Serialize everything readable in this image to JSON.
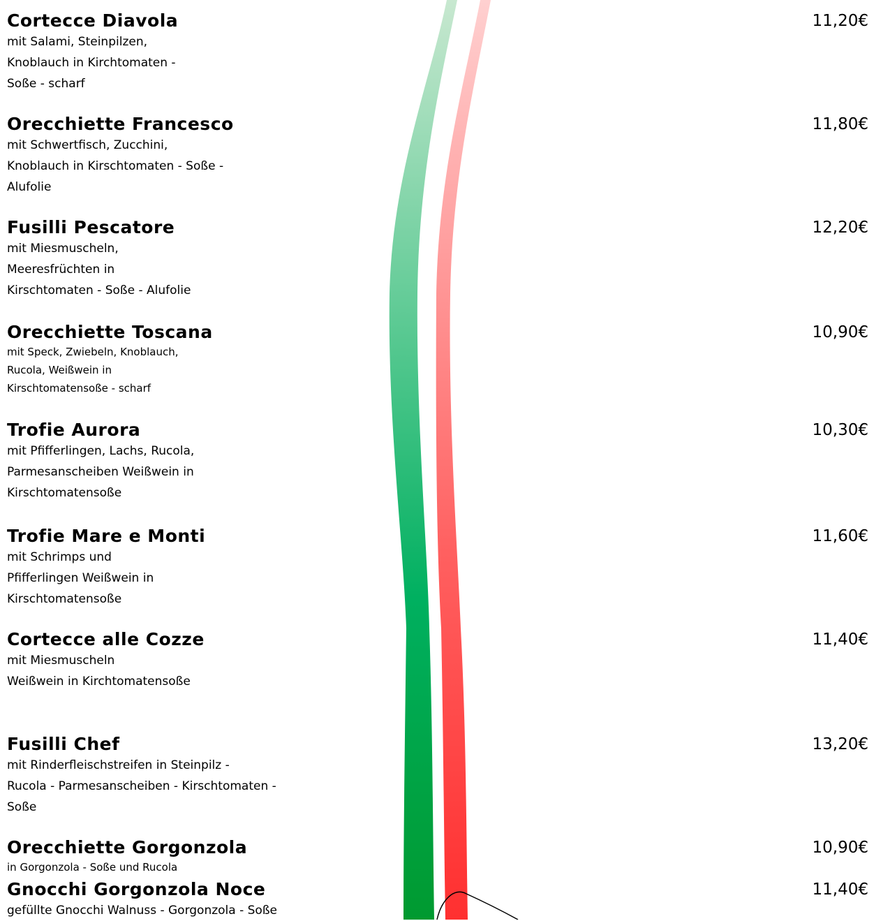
{
  "items": [
    {
      "name": "Cortecce Diavola",
      "description": [
        "mit Salami, Steinpilzen,",
        "Knoblauch in Kirchtomaten -",
        "Soße - scharf"
      ],
      "price": "11,20€"
    },
    {
      "name": "Orecchiette Francesco",
      "description": [
        "mit Schwertfisch, Zucchini,",
        "Knoblauch in Kirschtomaten - Soße -",
        "Alufolie"
      ],
      "price": "11,80€"
    },
    {
      "name": "Fusilli Pescatore",
      "description": [
        "mit Miesmuscheln,",
        "Meeresfrüchten in",
        "Kirschtomaten - Soße - Alufolie"
      ],
      "price": "12,20€"
    },
    {
      "name": "Orecchiette Toscana",
      "description": [
        "mit Speck, Zwiebeln, Knoblauch,",
        "Rucola, Weißwein in",
        "Kirschtomatensoße - scharf"
      ],
      "price": "10,90€"
    },
    {
      "name": "Trofie Aurora",
      "description": [
        "mit Pfifferlingen, Lachs, Rucola,",
        "Parmesanscheiben Weißwein in",
        "Kirschtomatensoße"
      ],
      "price": "10,30€"
    },
    {
      "name": "Trofie Mare e Monti",
      "description": [
        "mit Schrimps und",
        "Pfifferlingen Weißwein in",
        "Kirschtomatensoße"
      ],
      "price": "11,60€"
    },
    {
      "name": "Cortecce alle Cozze",
      "description": [
        "mit Miesmuscheln",
        "Weißwein in Kirchtomatensoße"
      ],
      "price": "11,40€"
    },
    {
      "name": "Fusilli Chef",
      "description": [
        "mit Rinderfleischstreifen in Steinpilz -",
        "Rucola - Parmesanscheiben - Kirschtomaten -",
        "Soße"
      ],
      "price": "13,20€"
    },
    {
      "name": "Orecchiette Gorgonzola",
      "description": [
        "in Gorgonzola - Soße und Rucola"
      ],
      "price": "10,90€"
    },
    {
      "name": "Gnocchi Gorgonzola Noce",
      "description": [
        "gefüllte Gnocchi Walnuss - Gorgonzola - Soße"
      ],
      "price": "11,40€"
    }
  ]
}
